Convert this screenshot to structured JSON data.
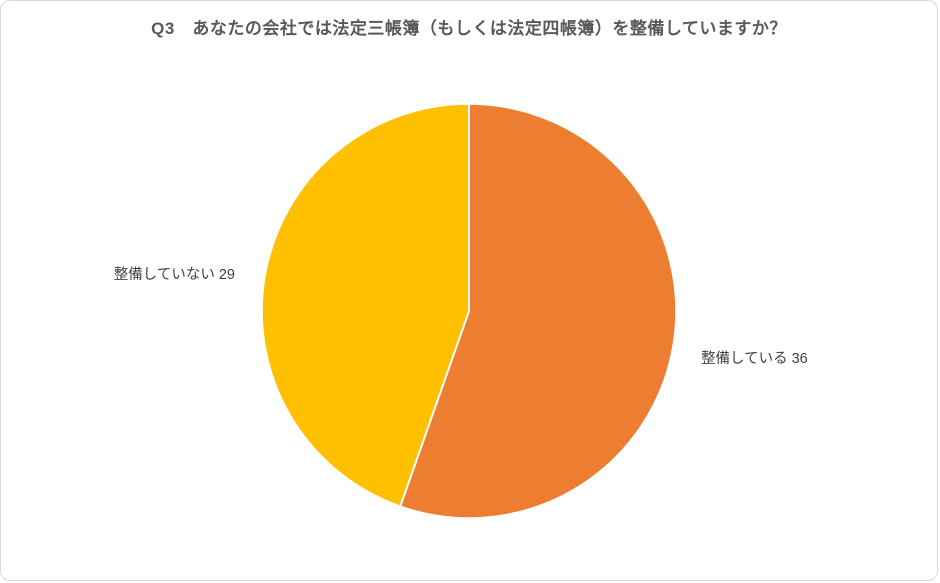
{
  "chart_data": {
    "type": "pie",
    "title": "Q3　あなたの会社では法定三帳簿（もしくは法定四帳簿）を整備していますか？",
    "categories": [
      "整備している",
      "整備していない"
    ],
    "values": [
      36,
      29
    ],
    "total": 65,
    "colors": [
      "#ED7D31",
      "#FFC000"
    ],
    "slice_border_color": "#ffffff",
    "title_color": "#595959",
    "label_color": "#404040",
    "start_angle_deg": 0,
    "direction": "clockwise",
    "legend": "none",
    "label_format": "category value",
    "labels_position": "outside"
  }
}
